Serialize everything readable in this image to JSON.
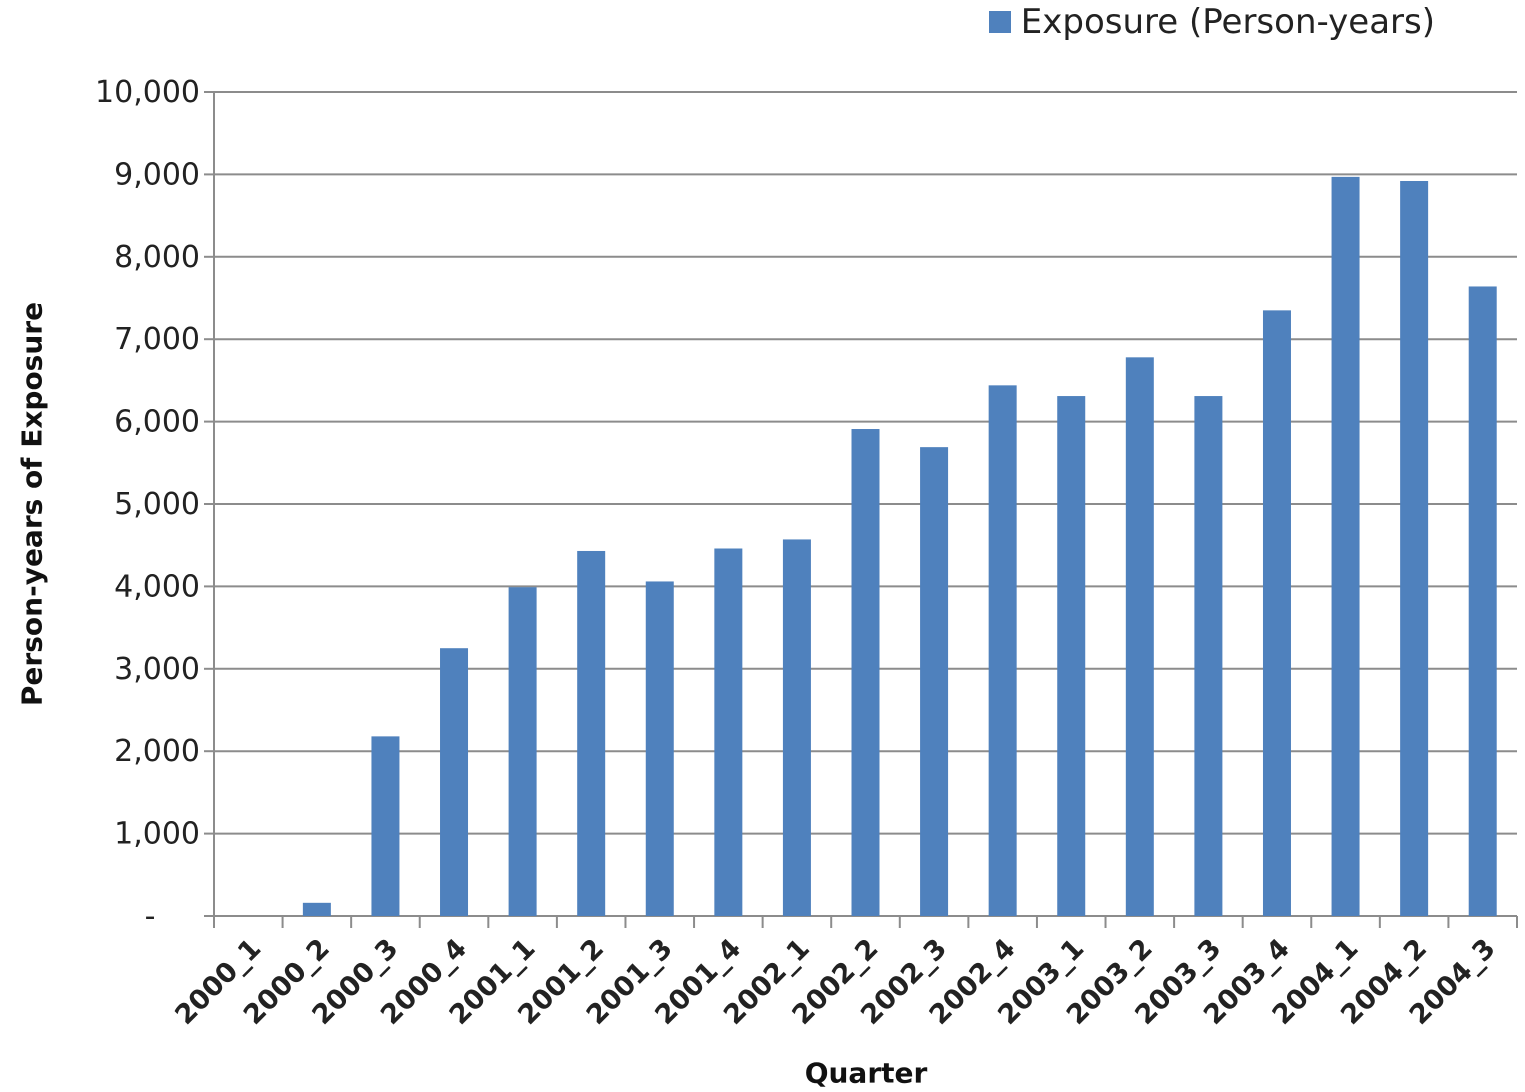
{
  "chart_data": {
    "type": "bar",
    "title": "",
    "xlabel": "Quarter",
    "ylabel": "Person-years of Exposure",
    "ylim": [
      0,
      10000
    ],
    "yticks": [
      {
        "value": 0,
        "label": "-"
      },
      {
        "value": 1000,
        "label": "1,000"
      },
      {
        "value": 2000,
        "label": "2,000"
      },
      {
        "value": 3000,
        "label": "3,000"
      },
      {
        "value": 4000,
        "label": "4,000"
      },
      {
        "value": 5000,
        "label": "5,000"
      },
      {
        "value": 6000,
        "label": "6,000"
      },
      {
        "value": 7000,
        "label": "7,000"
      },
      {
        "value": 8000,
        "label": "8,000"
      },
      {
        "value": 9000,
        "label": "9,000"
      },
      {
        "value": 10000,
        "label": "10,000"
      }
    ],
    "grid": true,
    "legend_position": "top-right",
    "categories": [
      "2000_1",
      "2000_2",
      "2000_3",
      "2000_4",
      "2001_1",
      "2001_2",
      "2001_3",
      "2001_4",
      "2002_1",
      "2002_2",
      "2002_3",
      "2002_4",
      "2003_1",
      "2003_2",
      "2003_3",
      "2003_4",
      "2004_1",
      "2004_2",
      "2004_3"
    ],
    "series": [
      {
        "name": "Exposure (Person-years)",
        "color": "#4F81BD",
        "values": [
          0,
          160,
          2180,
          3250,
          3990,
          4430,
          4060,
          4460,
          4570,
          5910,
          5690,
          6440,
          6310,
          6780,
          6310,
          7350,
          8970,
          8920,
          7640
        ]
      }
    ]
  }
}
